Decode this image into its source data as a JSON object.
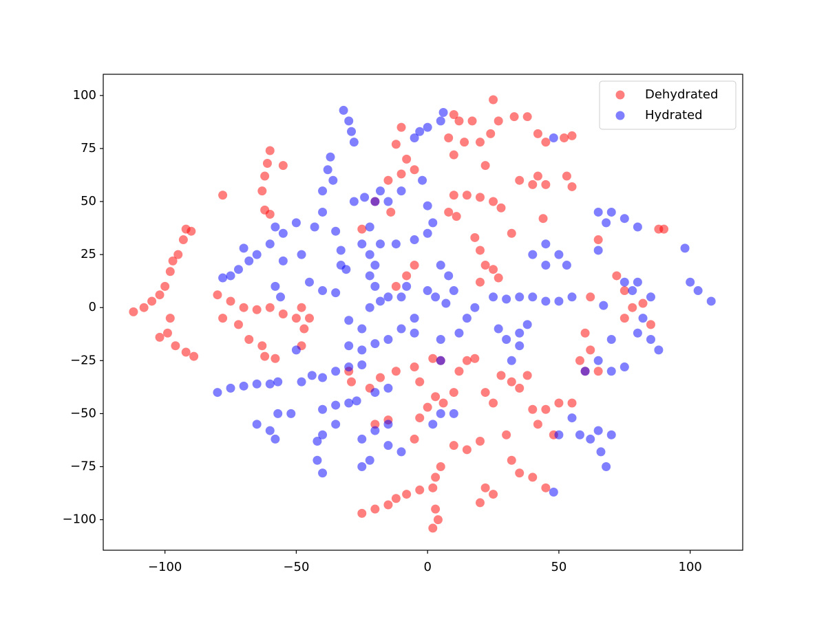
{
  "chart_data": {
    "type": "scatter",
    "xlim": [
      -123.5,
      120
    ],
    "ylim": [
      -114.4,
      110
    ],
    "xticks": [
      {
        "value": -100,
        "label": "−100"
      },
      {
        "value": -50,
        "label": "−50"
      },
      0,
      50,
      100
    ],
    "yticks": [
      {
        "value": -100,
        "label": "−100"
      },
      {
        "value": -75,
        "label": "−75"
      },
      {
        "value": -50,
        "label": "−50"
      },
      {
        "value": -25,
        "label": "−25"
      },
      0,
      25,
      50,
      75,
      100
    ],
    "legend": "upper right",
    "alpha": 0.5,
    "series": [
      {
        "name": "Dehydrated",
        "color": "#ff0000",
        "x": [
          -112,
          -108,
          -105,
          -102,
          -100,
          -98,
          -97,
          -95,
          -93,
          -92,
          -90,
          -98,
          -99,
          -102,
          -96,
          -92,
          -89,
          -60,
          -61,
          -62,
          -63,
          -62,
          -60,
          -55,
          -78,
          -80,
          -75,
          -70,
          -65,
          -60,
          -55,
          -50,
          -48,
          -45,
          -47,
          -72,
          -68,
          -63,
          -62,
          -58,
          -78,
          -48,
          -30,
          -29,
          -25,
          -20,
          -15,
          -12,
          -8,
          -3,
          2,
          3,
          2,
          4,
          -15,
          -10,
          -5,
          -8,
          -12,
          -10,
          -25,
          -20,
          -14,
          -12,
          -5,
          -8,
          10,
          12,
          8,
          10,
          14,
          17,
          20,
          24,
          25,
          27,
          33,
          38,
          22,
          10,
          15,
          8,
          11,
          20,
          25,
          28,
          32,
          18,
          20,
          22,
          25,
          27,
          20,
          2,
          5,
          -5,
          -3,
          -12,
          -18,
          -22,
          -20,
          -15,
          -5,
          -3,
          0,
          3,
          6,
          10,
          15,
          20,
          5,
          3,
          12,
          15,
          18,
          10,
          22,
          25,
          28,
          32,
          35,
          38,
          30,
          32,
          35,
          40,
          45,
          22,
          25,
          20,
          40,
          45,
          50,
          55,
          42,
          48,
          35,
          40,
          45,
          42,
          53,
          55,
          52,
          55,
          45,
          42,
          44,
          60,
          62,
          58,
          60,
          65,
          62,
          65,
          72,
          75,
          78,
          75,
          82,
          85,
          88,
          90
        ],
        "values": [
          -2,
          0,
          3,
          6,
          10,
          17,
          22,
          25,
          32,
          37,
          36,
          -5,
          -12,
          -14,
          -18,
          -21,
          -23,
          74,
          68,
          62,
          55,
          46,
          44,
          67,
          53,
          6,
          3,
          0,
          -1,
          0,
          -3,
          -5,
          0,
          -5,
          -10,
          -8,
          -15,
          -18,
          -23,
          -24,
          -5,
          -18,
          -30,
          -35,
          -97,
          -95,
          -93,
          -90,
          -88,
          -86,
          -85,
          -95,
          -104,
          -100,
          60,
          63,
          65,
          70,
          77,
          85,
          37,
          50,
          45,
          10,
          20,
          15,
          91,
          88,
          80,
          72,
          78,
          88,
          78,
          82,
          98,
          88,
          90,
          90,
          67,
          53,
          53,
          45,
          43,
          52,
          50,
          47,
          35,
          33,
          27,
          20,
          18,
          14,
          12,
          -24,
          -25,
          -28,
          -35,
          -30,
          -33,
          -38,
          -55,
          -53,
          -62,
          -52,
          -47,
          -42,
          -45,
          -65,
          -67,
          -63,
          -75,
          -80,
          -30,
          -25,
          -24,
          -40,
          -40,
          -45,
          -32,
          -35,
          -38,
          -32,
          -60,
          -72,
          -78,
          -80,
          -85,
          -85,
          -88,
          -92,
          -48,
          -48,
          -45,
          -45,
          -55,
          -60,
          60,
          58,
          58,
          62,
          62,
          57,
          80,
          81,
          78,
          82,
          42,
          -12,
          -20,
          -25,
          -30,
          -30,
          5,
          32,
          15,
          8,
          0,
          -5,
          2,
          -8,
          37,
          37
        ]
      },
      {
        "name": "Hydrated",
        "color": "#0000ff",
        "x": [
          -32,
          -30,
          -29,
          -28,
          -37,
          -38,
          -36,
          -40,
          -40,
          -43,
          -35,
          -28,
          -24,
          -70,
          -68,
          -72,
          -75,
          -78,
          -65,
          -60,
          -58,
          -55,
          -50,
          -55,
          -48,
          -58,
          -56,
          -45,
          -40,
          -35,
          -33,
          -33,
          -31,
          -80,
          -75,
          -70,
          -65,
          -60,
          -57,
          -65,
          -60,
          -57,
          -52,
          -58,
          -48,
          -44,
          -40,
          -35,
          -30,
          -25,
          -30,
          -25,
          -20,
          -50,
          -30,
          -25,
          -40,
          -35,
          -30,
          -27,
          -35,
          -40,
          -42,
          -42,
          -40,
          -25,
          -20,
          -15,
          -22,
          -25,
          -15,
          -10,
          2,
          5,
          10,
          -20,
          -15,
          -20,
          -18,
          -15,
          -10,
          -22,
          -25,
          -22,
          -20,
          -22,
          -20,
          -22,
          -18,
          -15,
          -10,
          -8,
          -5,
          -10,
          -15,
          -5,
          -18,
          -12,
          -5,
          0,
          2,
          0,
          -2,
          -5,
          -3,
          0,
          5,
          6,
          5,
          8,
          10,
          7,
          3,
          0,
          15,
          18,
          12,
          5,
          5,
          25,
          30,
          35,
          40,
          45,
          50,
          55,
          27,
          30,
          35,
          38,
          35,
          32,
          40,
          45,
          50,
          53,
          45,
          48,
          65,
          70,
          75,
          80,
          68,
          75,
          78,
          80,
          85,
          82,
          85,
          88,
          80,
          70,
          65,
          70,
          75,
          60,
          65,
          67,
          98,
          100,
          103,
          108,
          55,
          58,
          62,
          65,
          70,
          66,
          68,
          48,
          50
        ],
        "values": [
          93,
          88,
          83,
          78,
          71,
          65,
          60,
          55,
          45,
          38,
          36,
          50,
          52,
          28,
          22,
          18,
          15,
          14,
          25,
          30,
          38,
          35,
          40,
          22,
          25,
          10,
          5,
          12,
          8,
          7,
          20,
          27,
          18,
          -40,
          -38,
          -37,
          -36,
          -36,
          -35,
          -55,
          -58,
          -50,
          -50,
          -62,
          -35,
          -32,
          -33,
          -30,
          -28,
          -27,
          -18,
          -20,
          -17,
          -20,
          -6,
          -10,
          -48,
          -46,
          -45,
          -44,
          -55,
          -60,
          -63,
          -72,
          -78,
          -62,
          -58,
          -55,
          -72,
          -75,
          -65,
          -68,
          -55,
          -50,
          -50,
          -40,
          -38,
          50,
          55,
          50,
          55,
          38,
          30,
          25,
          20,
          15,
          10,
          0,
          3,
          5,
          5,
          10,
          -5,
          -10,
          -15,
          -12,
          30,
          30,
          32,
          35,
          40,
          48,
          60,
          80,
          83,
          85,
          88,
          92,
          20,
          15,
          8,
          2,
          5,
          8,
          -5,
          0,
          -12,
          -15,
          -25,
          5,
          4,
          5,
          5,
          3,
          3,
          5,
          -10,
          -15,
          -12,
          -8,
          -18,
          -25,
          25,
          20,
          25,
          20,
          30,
          80,
          45,
          45,
          42,
          38,
          40,
          12,
          8,
          12,
          5,
          -5,
          -15,
          -20,
          -12,
          -15,
          -25,
          -30,
          -28,
          -30,
          27,
          1,
          28,
          12,
          8,
          3,
          -52,
          -60,
          -62,
          -58,
          -60,
          -68,
          -75,
          -87,
          -60
        ]
      }
    ]
  }
}
